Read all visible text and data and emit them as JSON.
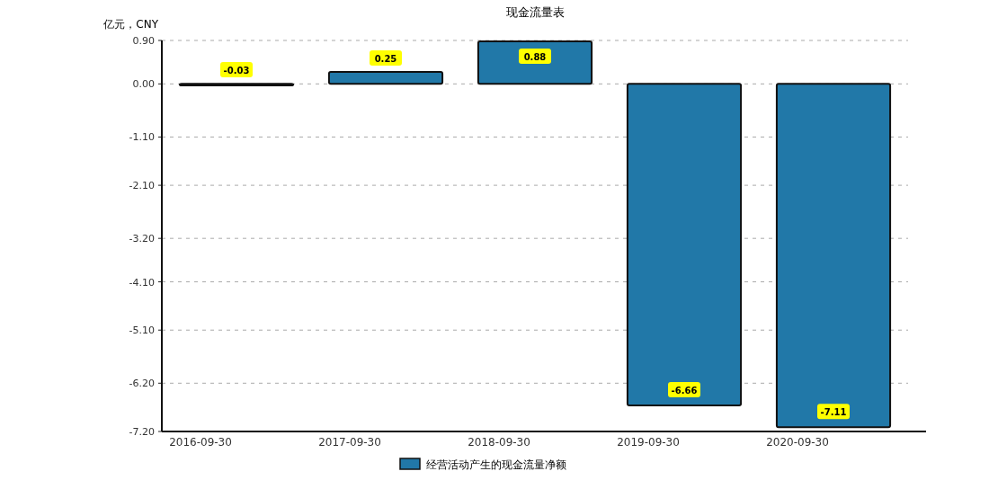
{
  "chart_data": {
    "type": "bar",
    "title": "现金流量表",
    "ylabel": "亿元，CNY",
    "categories": [
      "2016-09-30",
      "2017-09-30",
      "2018-09-30",
      "2019-09-30",
      "2020-09-30"
    ],
    "series": [
      {
        "name": "经营活动产生的现金流量净额",
        "color": "#2178a8",
        "values": [
          -0.03,
          0.25,
          0.88,
          -6.66,
          -7.11
        ]
      }
    ],
    "ylim": [
      -7.2,
      0.9
    ],
    "yticks": [
      {
        "value": 0.9,
        "label": "0.90"
      },
      {
        "value": 0,
        "label": "0.00"
      },
      {
        "value": -1.1,
        "label": "-1.10"
      },
      {
        "value": -2.1,
        "label": "-2.10"
      },
      {
        "value": -3.2,
        "label": "-3.20"
      },
      {
        "value": -4.1,
        "label": "-4.10"
      },
      {
        "value": -5.1,
        "label": "-5.10"
      },
      {
        "value": -6.2,
        "label": "-6.20"
      },
      {
        "value": -7.2,
        "label": "-7.20"
      }
    ],
    "grid": "y",
    "legend": "bottom",
    "data_labels": true
  }
}
